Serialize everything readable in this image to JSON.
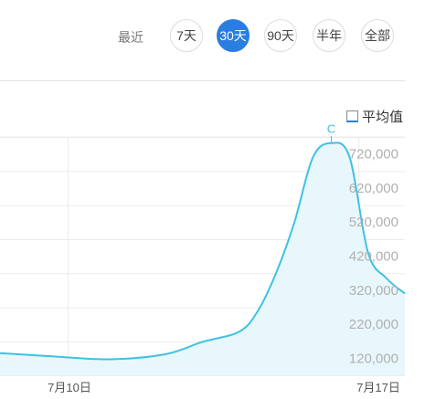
{
  "range_selector": {
    "label": "最近",
    "options": [
      {
        "label": "7天",
        "active": false
      },
      {
        "label": "30天",
        "active": true
      },
      {
        "label": "90天",
        "active": false
      },
      {
        "label": "半年",
        "active": false
      },
      {
        "label": "全部",
        "active": false
      }
    ]
  },
  "average_toggle": {
    "label": "平均值",
    "checked": false
  },
  "colors": {
    "line": "#3fc1e3",
    "area": "#e8f7fc",
    "accent": "#2a7de1",
    "grid": "#ebebeb"
  },
  "chart_data": {
    "type": "area",
    "title": "",
    "xlabel": "",
    "ylabel": "",
    "x_ticks": [
      {
        "label": "7月10日",
        "index": 8
      },
      {
        "label": "7月17日",
        "index": 15
      }
    ],
    "y_ticks": [
      {
        "label": "120,000",
        "value": 120000
      },
      {
        "label": "220,000",
        "value": 220000
      },
      {
        "label": "320,000",
        "value": 320000
      },
      {
        "label": "420,000",
        "value": 420000
      },
      {
        "label": "520,000",
        "value": 520000
      },
      {
        "label": "620,000",
        "value": 620000
      },
      {
        "label": "720,000",
        "value": 720000
      }
    ],
    "ylim": [
      70000,
      770000
    ],
    "grid": true,
    "series": [
      {
        "values": [
          {
            "x": 0,
            "y": 135000
          },
          {
            "x": 3,
            "y": 125000
          },
          {
            "x": 6,
            "y": 117000
          },
          {
            "x": 9,
            "y": 132000
          },
          {
            "x": 11,
            "y": 168000
          },
          {
            "x": 13,
            "y": 198000
          },
          {
            "x": 14,
            "y": 258000
          },
          {
            "x": 15,
            "y": 370000
          },
          {
            "x": 16,
            "y": 520000
          },
          {
            "x": 17,
            "y": 710000
          },
          {
            "x": 18,
            "y": 752000
          },
          {
            "x": 19,
            "y": 710000
          },
          {
            "x": 20,
            "y": 430000
          },
          {
            "x": 21,
            "y": 355000
          },
          {
            "x": 22,
            "y": 310000
          }
        ]
      }
    ],
    "annotations": [
      {
        "label": "C",
        "x": 18,
        "y": 752000
      }
    ]
  }
}
